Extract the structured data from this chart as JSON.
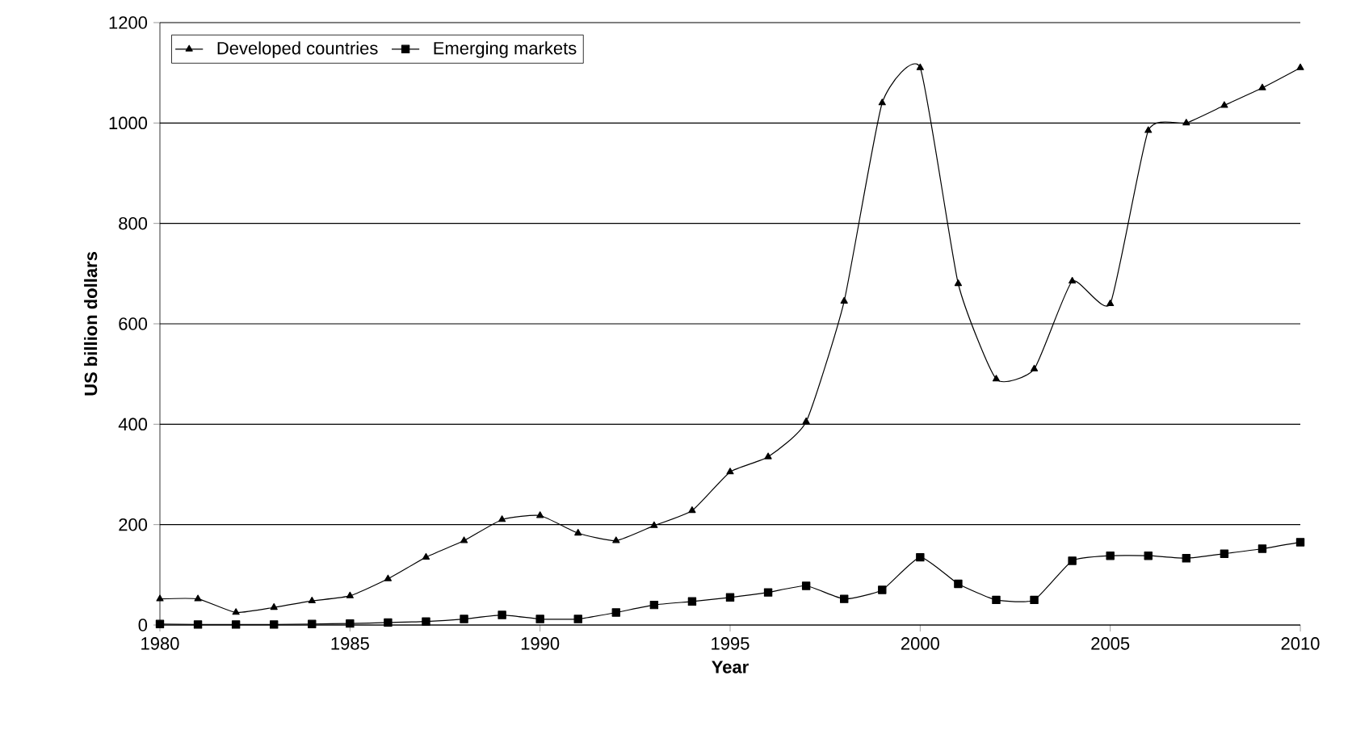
{
  "chart_data": {
    "type": "line",
    "xlabel": "Year",
    "ylabel": "US billion dollars",
    "x": [
      1980,
      1981,
      1982,
      1983,
      1984,
      1985,
      1986,
      1987,
      1988,
      1989,
      1990,
      1991,
      1992,
      1993,
      1994,
      1995,
      1996,
      1997,
      1998,
      1999,
      2000,
      2001,
      2002,
      2003,
      2004,
      2005,
      2006,
      2007,
      2008,
      2009,
      2010
    ],
    "series": [
      {
        "name": "Developed countries",
        "color": "#000000",
        "marker": "triangle",
        "values": [
          52,
          52,
          25,
          35,
          48,
          58,
          92,
          135,
          168,
          210,
          218,
          183,
          168,
          198,
          228,
          305,
          335,
          405,
          645,
          1040,
          1110,
          680,
          490,
          510,
          685,
          640,
          985,
          1000,
          1035,
          1070,
          1110
        ]
      },
      {
        "name": "Emerging markets",
        "color": "#000000",
        "marker": "square",
        "values": [
          2,
          1,
          1,
          1,
          2,
          3,
          5,
          7,
          12,
          20,
          12,
          12,
          25,
          40,
          47,
          55,
          65,
          78,
          52,
          70,
          135,
          82,
          50,
          50,
          128,
          138,
          138,
          133,
          142,
          152,
          165
        ]
      }
    ],
    "xlim": [
      1980,
      2010
    ],
    "xticks": [
      1980,
      1985,
      1990,
      1995,
      2000,
      2005,
      2010
    ],
    "ylim": [
      0,
      1200
    ],
    "yticks": [
      0,
      200,
      400,
      600,
      800,
      1000,
      1200
    ],
    "grid": "y",
    "legend": "top left",
    "line_style": "solid"
  }
}
